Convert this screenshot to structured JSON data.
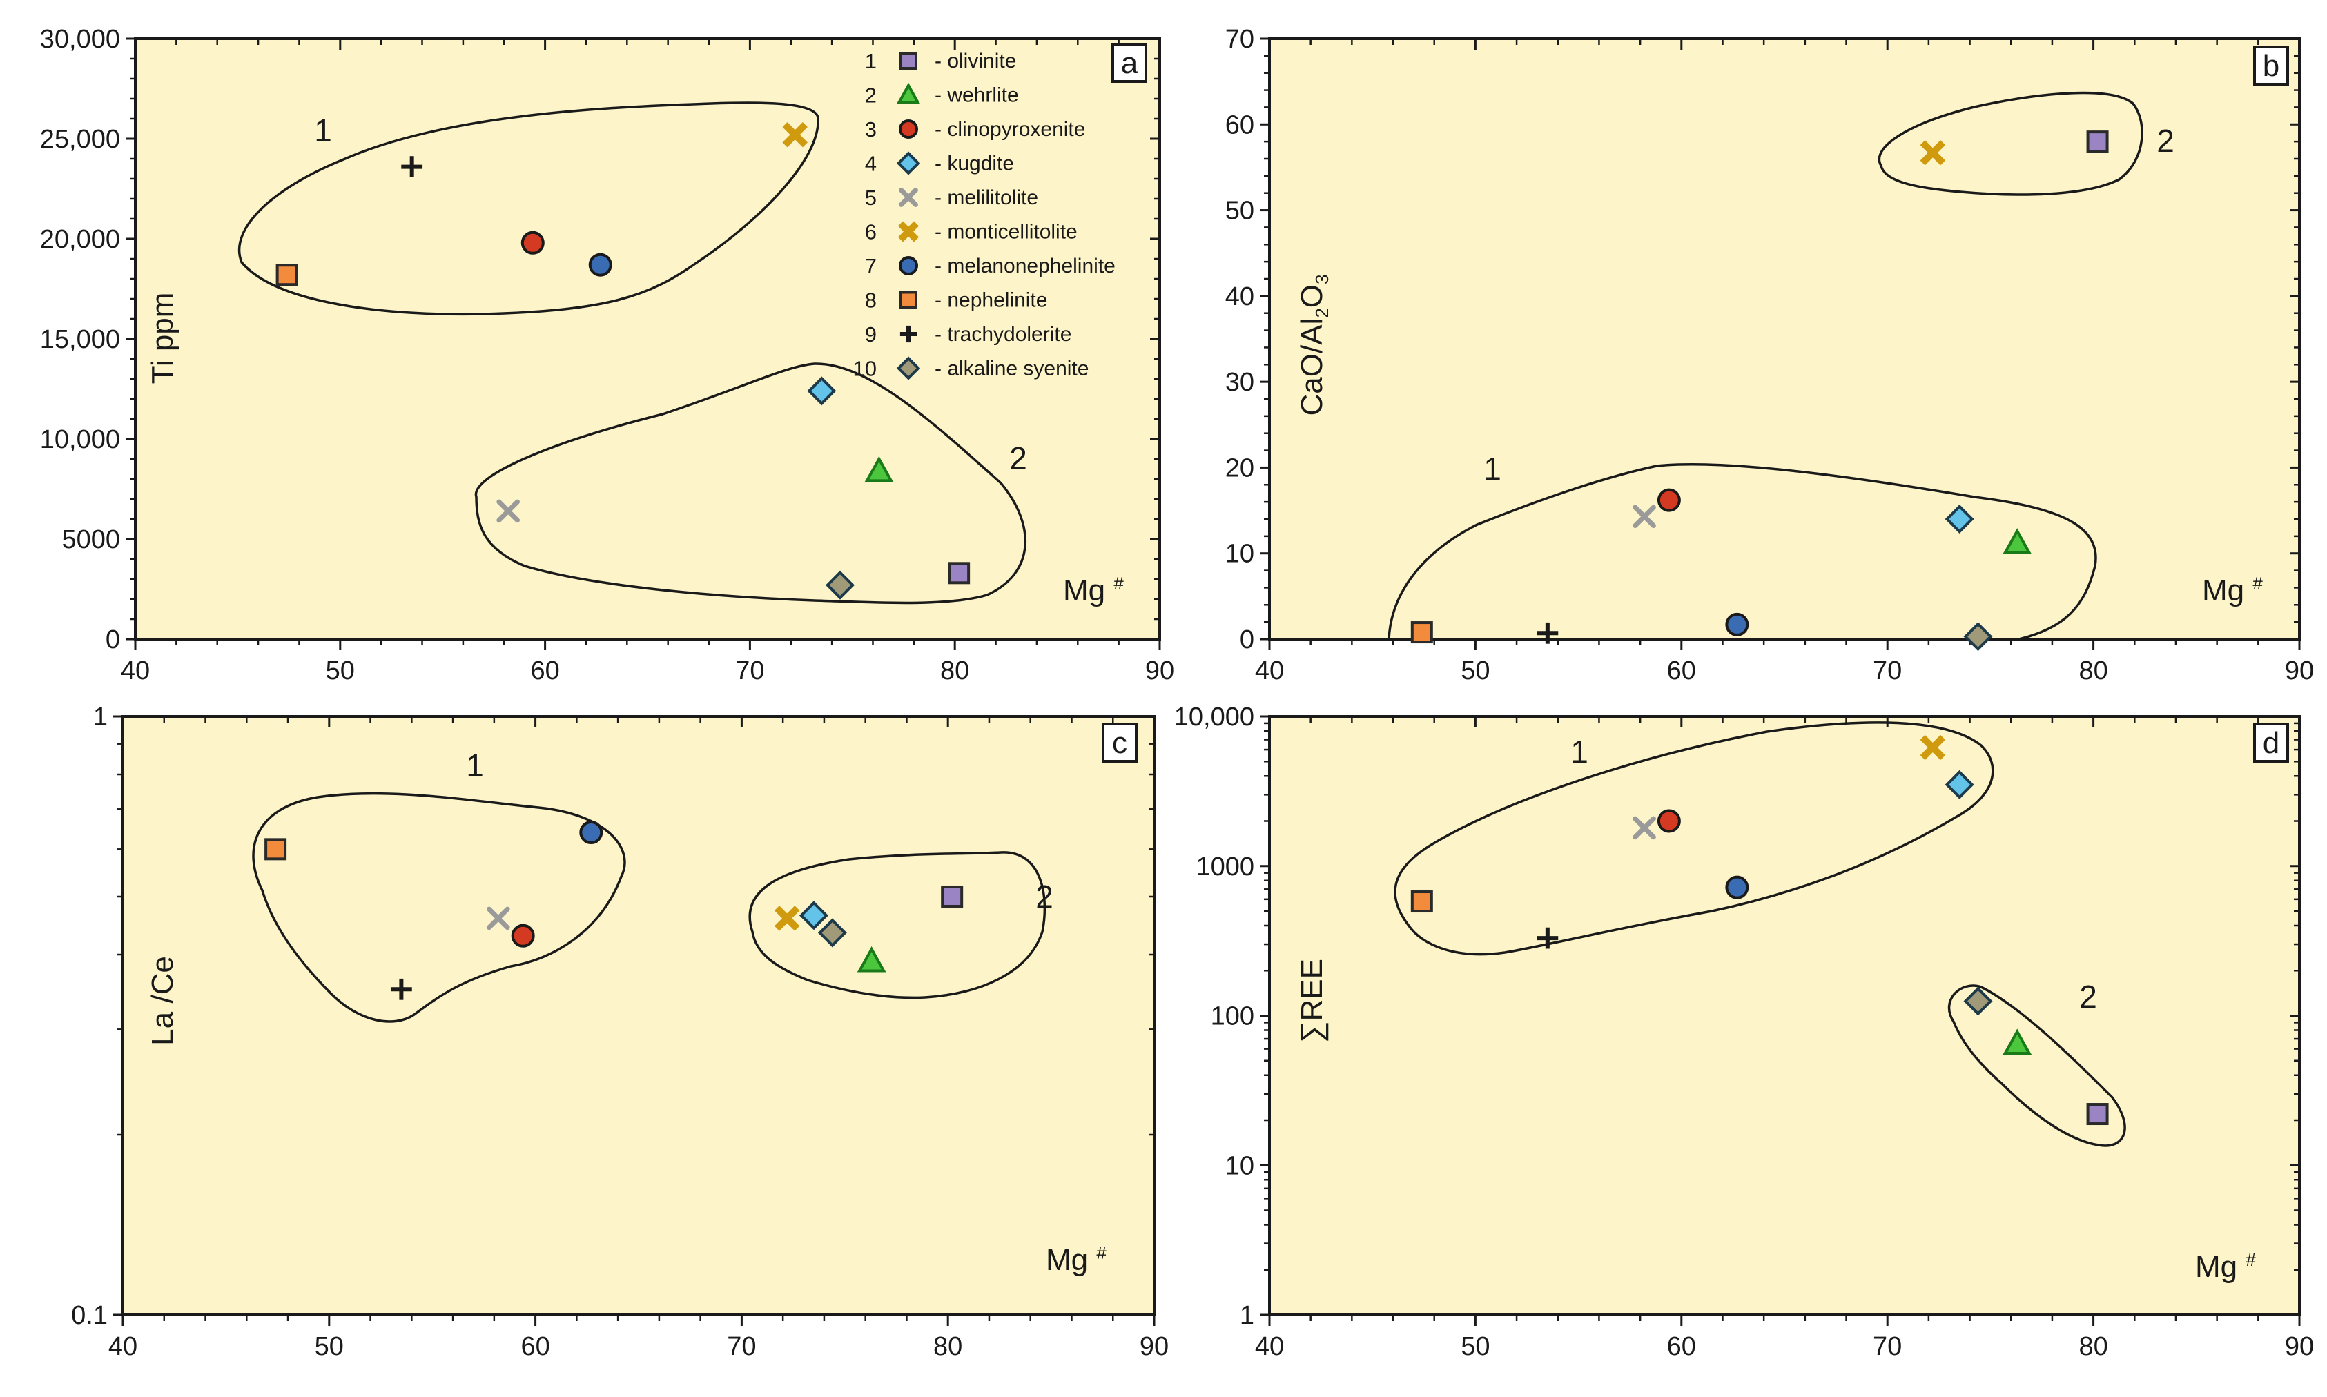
{
  "colors": {
    "plot_bg": "#fdf5c9",
    "olivinite": "#9b84c4",
    "wehrlite": "#4cc63c",
    "clinopyroxenite": "#d43a22",
    "kugdite": "#63c3e8",
    "melilitolite": "#9a9a9a",
    "monticellitolite": "#cf9a0e",
    "melanonephelinite": "#3a6cb3",
    "nephelinite": "#f28c3c",
    "trachydolerite": "#1a1a1a",
    "alkaline_syenite": "#a09a78"
  },
  "legend": [
    {
      "num": "1",
      "label": "- olivinite",
      "key": "olivinite",
      "marker": "square"
    },
    {
      "num": "2",
      "label": "- wehrlite",
      "key": "wehrlite",
      "marker": "triangle"
    },
    {
      "num": "3",
      "label": "- clinopyroxenite",
      "key": "clinopyroxenite",
      "marker": "circle"
    },
    {
      "num": "4",
      "label": "- kugdite",
      "key": "kugdite",
      "marker": "diamond"
    },
    {
      "num": "5",
      "label": "- melilitolite",
      "key": "melilitolite",
      "marker": "xthin"
    },
    {
      "num": "6",
      "label": "- monticellitolite",
      "key": "monticellitolite",
      "marker": "xthick"
    },
    {
      "num": "7",
      "label": "- melanonephelinite",
      "key": "melanonephelinite",
      "marker": "circle"
    },
    {
      "num": "8",
      "label": "- nephelinite",
      "key": "nephelinite",
      "marker": "square"
    },
    {
      "num": "9",
      "label": "- trachydolerite",
      "key": "trachydolerite",
      "marker": "plus"
    },
    {
      "num": "10",
      "label": "- alkaline syenite",
      "key": "alkaline_syenite",
      "marker": "diamond"
    }
  ],
  "chart_data": [
    {
      "type": "scatter",
      "id": "a",
      "letter": "a",
      "xlabel": "Mg #",
      "ylabel": "Ti ppm",
      "xlim": [
        40,
        90
      ],
      "ylim": [
        0,
        30000
      ],
      "yscale": "linear",
      "xticks": [
        "40",
        "50",
        "60",
        "70",
        "80",
        "90"
      ],
      "yticks": [
        "0",
        "5000",
        "10,000",
        "15,000",
        "20,000",
        "25,000",
        "30,000"
      ],
      "field_labels": [
        "1",
        "2"
      ],
      "points": [
        {
          "rock": "olivinite",
          "x": 80.2,
          "y": 3300
        },
        {
          "rock": "wehrlite",
          "x": 76.3,
          "y": 8400
        },
        {
          "rock": "clinopyroxenite",
          "x": 59.4,
          "y": 19800
        },
        {
          "rock": "kugdite",
          "x": 73.5,
          "y": 12400
        },
        {
          "rock": "melilitolite",
          "x": 58.2,
          "y": 6400
        },
        {
          "rock": "monticellitolite",
          "x": 72.2,
          "y": 25200
        },
        {
          "rock": "melanonephelinite",
          "x": 62.7,
          "y": 18700
        },
        {
          "rock": "nephelinite",
          "x": 47.4,
          "y": 18200
        },
        {
          "rock": "trachydolerite",
          "x": 53.5,
          "y": 23600
        },
        {
          "rock": "alkaline_syenite",
          "x": 74.4,
          "y": 2700
        }
      ]
    },
    {
      "type": "scatter",
      "id": "b",
      "letter": "b",
      "xlabel": "Mg #",
      "ylabel": "CaO/Al2O3",
      "xlim": [
        40,
        90
      ],
      "ylim": [
        0,
        70
      ],
      "yscale": "linear",
      "xticks": [
        "40",
        "50",
        "60",
        "70",
        "80",
        "90"
      ],
      "yticks": [
        "0",
        "10",
        "20",
        "30",
        "40",
        "50",
        "60",
        "70"
      ],
      "field_labels": [
        "1",
        "2"
      ],
      "points": [
        {
          "rock": "olivinite",
          "x": 80.2,
          "y": 58
        },
        {
          "rock": "wehrlite",
          "x": 76.3,
          "y": 11.2
        },
        {
          "rock": "clinopyroxenite",
          "x": 59.4,
          "y": 16.2
        },
        {
          "rock": "kugdite",
          "x": 73.5,
          "y": 14
        },
        {
          "rock": "melilitolite",
          "x": 58.2,
          "y": 14.3
        },
        {
          "rock": "monticellitolite",
          "x": 72.2,
          "y": 56.7
        },
        {
          "rock": "melanonephelinite",
          "x": 62.7,
          "y": 1.7
        },
        {
          "rock": "nephelinite",
          "x": 47.4,
          "y": 0.8
        },
        {
          "rock": "trachydolerite",
          "x": 53.5,
          "y": 0.7
        },
        {
          "rock": "alkaline_syenite",
          "x": 74.4,
          "y": 0.3
        }
      ]
    },
    {
      "type": "scatter",
      "id": "c",
      "letter": "c",
      "xlabel": "Mg #",
      "ylabel": "La /Ce",
      "xlim": [
        40,
        90
      ],
      "ylim": [
        0.1,
        1
      ],
      "yscale": "log",
      "xticks": [
        "40",
        "50",
        "60",
        "70",
        "80",
        "90"
      ],
      "yticks": [
        "0.1",
        "1"
      ],
      "field_labels": [
        "1",
        "2"
      ],
      "points": [
        {
          "rock": "olivinite",
          "x": 80.2,
          "y": 0.5
        },
        {
          "rock": "wehrlite",
          "x": 76.3,
          "y": 0.39
        },
        {
          "rock": "clinopyroxenite",
          "x": 59.4,
          "y": 0.43
        },
        {
          "rock": "kugdite",
          "x": 73.5,
          "y": 0.465
        },
        {
          "rock": "melilitolite",
          "x": 58.2,
          "y": 0.46
        },
        {
          "rock": "monticellitolite",
          "x": 72.2,
          "y": 0.46
        },
        {
          "rock": "melanonephelinite",
          "x": 62.7,
          "y": 0.64
        },
        {
          "rock": "nephelinite",
          "x": 47.4,
          "y": 0.6
        },
        {
          "rock": "trachydolerite",
          "x": 53.5,
          "y": 0.35
        },
        {
          "rock": "alkaline_syenite",
          "x": 74.4,
          "y": 0.435
        }
      ]
    },
    {
      "type": "scatter",
      "id": "d",
      "letter": "d",
      "xlabel": "Mg #",
      "ylabel": "∑REE",
      "xlim": [
        40,
        90
      ],
      "ylim": [
        1,
        10000
      ],
      "yscale": "log",
      "xticks": [
        "40",
        "50",
        "60",
        "70",
        "80",
        "90"
      ],
      "yticks": [
        "1",
        "10",
        "100",
        "1000",
        "10,000"
      ],
      "field_labels": [
        "1",
        "2"
      ],
      "points": [
        {
          "rock": "olivinite",
          "x": 80.2,
          "y": 22
        },
        {
          "rock": "wehrlite",
          "x": 76.3,
          "y": 65
        },
        {
          "rock": "clinopyroxenite",
          "x": 59.4,
          "y": 2000
        },
        {
          "rock": "kugdite",
          "x": 73.5,
          "y": 3500
        },
        {
          "rock": "melilitolite",
          "x": 58.2,
          "y": 1800
        },
        {
          "rock": "monticellitolite",
          "x": 72.2,
          "y": 6200
        },
        {
          "rock": "melanonephelinite",
          "x": 62.7,
          "y": 720
        },
        {
          "rock": "nephelinite",
          "x": 47.4,
          "y": 580
        },
        {
          "rock": "trachydolerite",
          "x": 53.5,
          "y": 330
        },
        {
          "rock": "alkaline_syenite",
          "x": 74.4,
          "y": 125
        }
      ]
    }
  ]
}
